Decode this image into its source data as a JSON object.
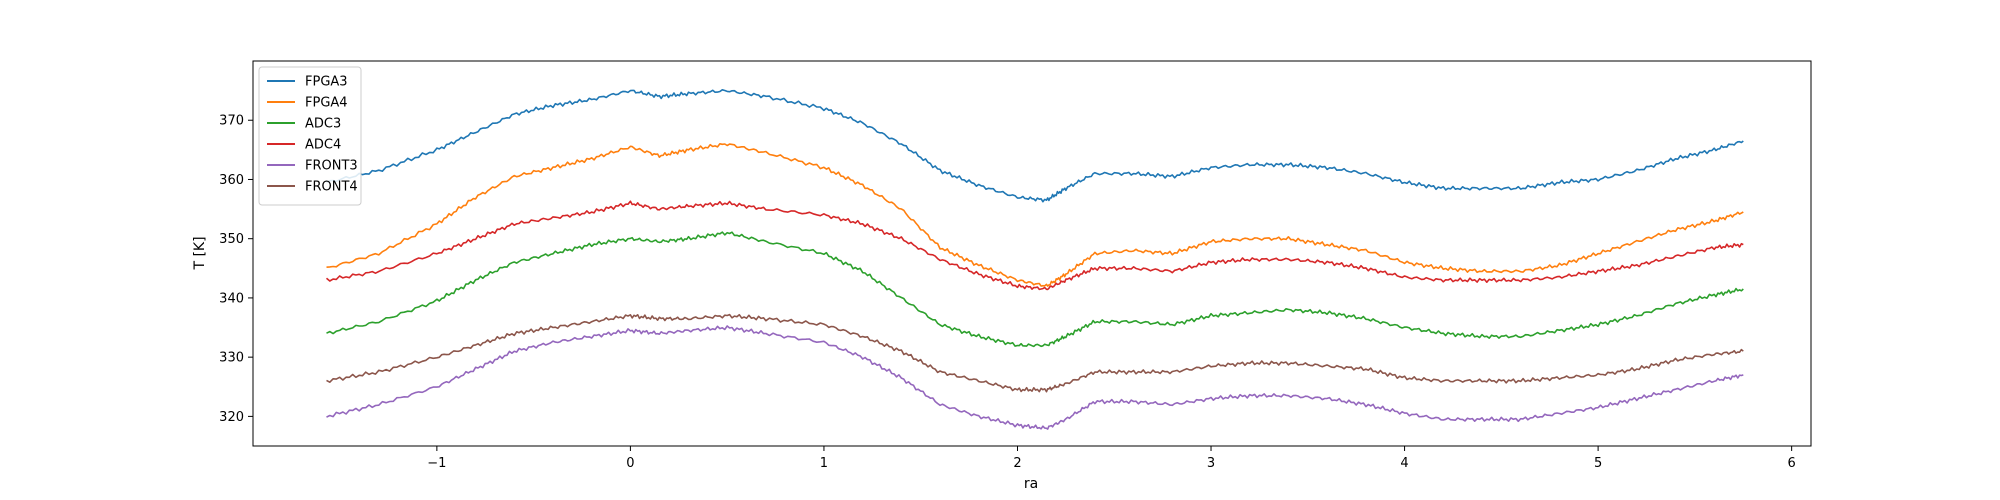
{
  "chart_data": {
    "type": "line",
    "title": "",
    "xlabel": "ra",
    "ylabel": "T [K]",
    "xlim": [
      -1.95,
      6.1
    ],
    "ylim": [
      315,
      380
    ],
    "xticks": [
      -1,
      0,
      1,
      2,
      3,
      4,
      5,
      6
    ],
    "xtick_labels": [
      "−1",
      "0",
      "1",
      "2",
      "3",
      "4",
      "5",
      "6"
    ],
    "yticks": [
      320,
      330,
      340,
      350,
      360,
      370
    ],
    "ytick_labels": [
      "320",
      "330",
      "340",
      "350",
      "360",
      "370"
    ],
    "grid": false,
    "legend_position": "top-left",
    "x": [
      -1.57,
      -1.3,
      -1.0,
      -0.8,
      -0.6,
      -0.4,
      -0.2,
      0.0,
      0.15,
      0.3,
      0.5,
      0.7,
      1.0,
      1.2,
      1.4,
      1.6,
      1.8,
      2.0,
      2.15,
      2.25,
      2.4,
      2.6,
      2.8,
      3.0,
      3.2,
      3.4,
      3.6,
      3.8,
      4.0,
      4.2,
      4.4,
      4.6,
      4.8,
      5.0,
      5.2,
      5.4,
      5.6,
      5.75
    ],
    "series": [
      {
        "name": "FPGA3",
        "color": "#1f77b4",
        "values": [
          359.5,
          361.5,
          365,
          368,
          371,
          372.5,
          373.5,
          375,
          374,
          374.5,
          375,
          374,
          372,
          369.5,
          366,
          361.5,
          359,
          357,
          356.5,
          358.5,
          361,
          361,
          360.5,
          362,
          362.5,
          362.5,
          362,
          361,
          359.5,
          358.5,
          358.5,
          358.5,
          359.5,
          360,
          361.5,
          363.5,
          365,
          366.5
        ]
      },
      {
        "name": "FPGA4",
        "color": "#ff7f0e",
        "values": [
          345,
          347.5,
          352.5,
          357,
          360.5,
          362,
          363.5,
          365.5,
          364,
          365,
          366,
          364.5,
          362,
          359,
          355,
          348.5,
          345.5,
          343,
          342,
          344,
          347.5,
          348,
          347.5,
          349.5,
          350,
          350,
          349,
          348,
          346,
          345,
          344.5,
          344.5,
          345.5,
          347.5,
          349.5,
          351.5,
          353,
          354.5
        ]
      },
      {
        "name": "ADC3",
        "color": "#2ca02c",
        "values": [
          334,
          336,
          339.5,
          343,
          346,
          347.5,
          349,
          350,
          349.5,
          350,
          351,
          349.5,
          347.5,
          344.5,
          340,
          335.5,
          333.5,
          332,
          332,
          333.5,
          336,
          336,
          335.5,
          337,
          337.5,
          338,
          337.5,
          336.5,
          335,
          334,
          333.5,
          333.5,
          334.5,
          335.5,
          337,
          339,
          340.5,
          341.5
        ]
      },
      {
        "name": "ADC4",
        "color": "#d62728",
        "values": [
          343,
          344.5,
          347.5,
          350,
          352.5,
          353.5,
          354.5,
          356,
          355,
          355.5,
          356,
          355,
          354,
          352.5,
          350,
          346.5,
          344,
          342,
          341.5,
          343,
          345,
          345,
          344.5,
          346,
          346.5,
          346.5,
          346,
          345,
          343.5,
          343,
          343,
          343,
          343.5,
          344.5,
          345.5,
          347,
          348.5,
          349
        ]
      },
      {
        "name": "FRONT3",
        "color": "#9467bd",
        "values": [
          320,
          322,
          325,
          328,
          331,
          332.5,
          333.5,
          334.5,
          334,
          334.5,
          335,
          334,
          332.5,
          330,
          326.5,
          322,
          320,
          318.5,
          318,
          319.5,
          322.5,
          322.5,
          322,
          323,
          323.5,
          323.5,
          323,
          322,
          320.5,
          319.5,
          319.5,
          319.5,
          320.5,
          321.5,
          323,
          324.5,
          326,
          327
        ]
      },
      {
        "name": "FRONT4",
        "color": "#8c564b",
        "values": [
          326,
          327.5,
          330,
          332,
          334,
          335,
          336,
          337,
          336.5,
          336.5,
          337,
          336.5,
          335.5,
          333.5,
          331,
          327.5,
          326,
          324.5,
          324.5,
          325.5,
          327.5,
          327.5,
          327.5,
          328.5,
          329,
          329,
          328.5,
          328,
          326.5,
          326,
          326,
          326,
          326.5,
          327,
          328,
          329.5,
          330.5,
          331
        ]
      }
    ]
  }
}
